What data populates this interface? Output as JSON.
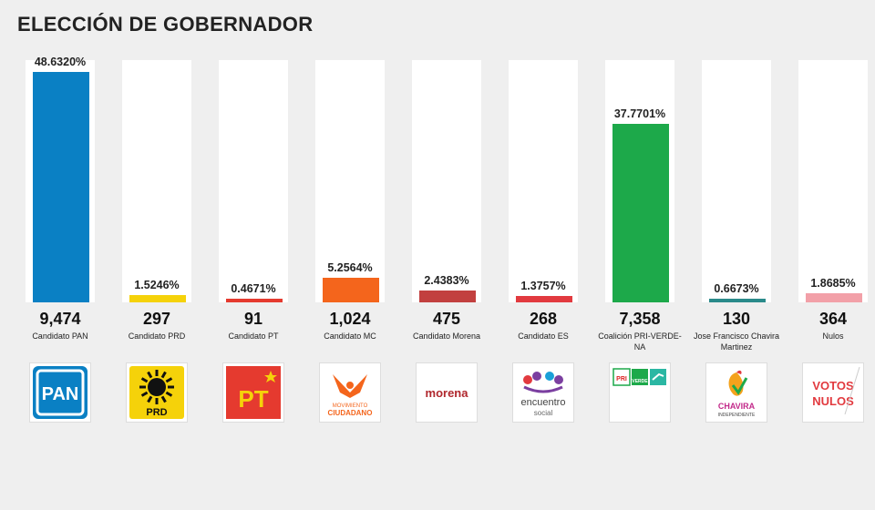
{
  "title": "ELECCIÓN DE GOBERNADOR",
  "colors": {
    "pan": "#0a80c4",
    "prd": "#f5d20a",
    "pt": "#e53a2f",
    "mc": "#f4651c",
    "morena": "#c2403f",
    "es": "#e23a3f",
    "coalicion": "#1da94a",
    "chavira": "#2a8a8a",
    "nulos": "#f2a0a8"
  },
  "logos": {
    "pan": "PAN",
    "prd": "PRD",
    "pt": "PT",
    "mc_line1": "MOVIMIENTO",
    "mc_line2": "CIUDADANO",
    "morena": "morena",
    "es_line1": "encuentro",
    "es_line2": "social",
    "coal_pri": "PRI",
    "coal_verde": "VERDE",
    "chavira_name": "CHAVIRA",
    "chavira_sub": "INDEPENDIENTE",
    "nulos_line1": "VOTOS",
    "nulos_line2": "NULOS"
  },
  "chart_data": {
    "type": "bar",
    "title": "ELECCIÓN DE GOBERNADOR",
    "ylim": [
      0,
      100
    ],
    "categories": [
      "Candidato PAN",
      "Candidato PRD",
      "Candidato PT",
      "Candidato MC",
      "Candidato Morena",
      "Candidato ES",
      "Coalición PRI-VERDE-NA",
      "Jose Francisco Chavira Martinez",
      "Nulos"
    ],
    "percent_labels": [
      "48.6320%",
      "1.5246%",
      "0.4671%",
      "5.2564%",
      "2.4383%",
      "1.3757%",
      "37.7701%",
      "0.6673%",
      "1.8685%"
    ],
    "values": [
      48.632,
      1.5246,
      0.4671,
      5.2564,
      2.4383,
      1.3757,
      37.7701,
      0.6673,
      1.8685
    ],
    "votes": [
      "9,474",
      "297",
      "91",
      "1,024",
      "475",
      "268",
      "7,358",
      "130",
      "364"
    ],
    "colors": [
      "#0a80c4",
      "#f5d20a",
      "#e53a2f",
      "#f4651c",
      "#c2403f",
      "#e23a3f",
      "#1da94a",
      "#2a8a8a",
      "#f2a0a8"
    ]
  }
}
